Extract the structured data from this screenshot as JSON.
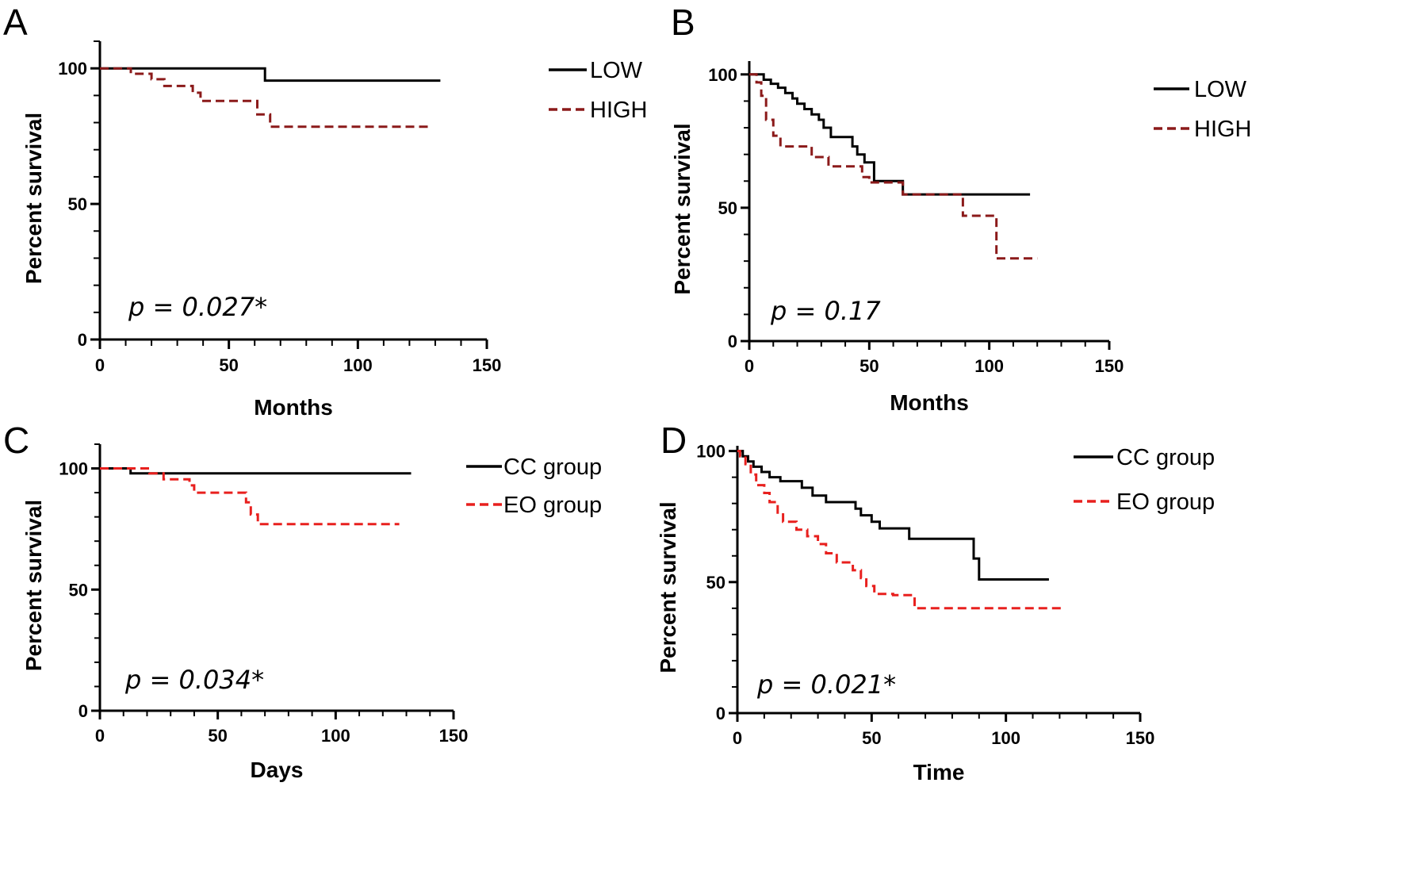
{
  "chart_data": [
    {
      "type": "line",
      "panel_label": "A",
      "xlabel": "Months",
      "ylabel": "Percent survival",
      "xlim": [
        0,
        150
      ],
      "ylim": [
        0,
        110
      ],
      "xticks": [
        "0",
        "50",
        "100",
        "150"
      ],
      "yticks": [
        "0",
        "50",
        "100"
      ],
      "annotation": "p = 0.027*",
      "legend_position": "right",
      "series": [
        {
          "name": "LOW",
          "color": "#000000",
          "style": "solid",
          "points": [
            [
              0,
              100
            ],
            [
              64,
              100
            ],
            [
              64,
              95.5
            ],
            [
              132,
              95.5
            ]
          ]
        },
        {
          "name": "HIGH",
          "color": "#8b1a1a",
          "style": "dashed",
          "points": [
            [
              0,
              100
            ],
            [
              12,
              100
            ],
            [
              12,
              98
            ],
            [
              20,
              98
            ],
            [
              20,
              96
            ],
            [
              25,
              96
            ],
            [
              25,
              93.5
            ],
            [
              36,
              93.5
            ],
            [
              36,
              91
            ],
            [
              39,
              91
            ],
            [
              39,
              88
            ],
            [
              61,
              88
            ],
            [
              61,
              83
            ],
            [
              66,
              83
            ],
            [
              66,
              78.5
            ],
            [
              128,
              78.5
            ]
          ]
        }
      ]
    },
    {
      "type": "line",
      "panel_label": "B",
      "xlabel": "Months",
      "ylabel": "Percent survival",
      "xlim": [
        0,
        150
      ],
      "ylim": [
        0,
        105
      ],
      "xticks": [
        "0",
        "50",
        "100",
        "150"
      ],
      "yticks": [
        "0",
        "50",
        "100"
      ],
      "annotation": "p = 0.17",
      "legend_position": "right",
      "series": [
        {
          "name": "LOW",
          "color": "#000000",
          "style": "solid",
          "points": [
            [
              0,
              100
            ],
            [
              6,
              100
            ],
            [
              6,
              98
            ],
            [
              9,
              98
            ],
            [
              9,
              96.5
            ],
            [
              12,
              96.5
            ],
            [
              12,
              95
            ],
            [
              15,
              95
            ],
            [
              15,
              93
            ],
            [
              18,
              93
            ],
            [
              18,
              91
            ],
            [
              20,
              91
            ],
            [
              20,
              89
            ],
            [
              23,
              89
            ],
            [
              23,
              87
            ],
            [
              26,
              87
            ],
            [
              26,
              85
            ],
            [
              29,
              85
            ],
            [
              29,
              83
            ],
            [
              31,
              83
            ],
            [
              31,
              80
            ],
            [
              34,
              80
            ],
            [
              34,
              76.5
            ],
            [
              43,
              76.5
            ],
            [
              43,
              73
            ],
            [
              45,
              73
            ],
            [
              45,
              70
            ],
            [
              48,
              70
            ],
            [
              48,
              67
            ],
            [
              52,
              67
            ],
            [
              52,
              60
            ],
            [
              64,
              60
            ],
            [
              64,
              55
            ],
            [
              117,
              55
            ]
          ]
        },
        {
          "name": "HIGH",
          "color": "#8b1a1a",
          "style": "dashed",
          "points": [
            [
              0,
              100
            ],
            [
              3,
              100
            ],
            [
              3,
              97
            ],
            [
              5,
              97
            ],
            [
              5,
              92
            ],
            [
              7,
              92
            ],
            [
              7,
              83
            ],
            [
              10,
              83
            ],
            [
              10,
              77
            ],
            [
              13,
              77
            ],
            [
              13,
              73
            ],
            [
              26,
              73
            ],
            [
              26,
              69
            ],
            [
              33,
              69
            ],
            [
              33,
              65.5
            ],
            [
              47,
              65.5
            ],
            [
              47,
              61.5
            ],
            [
              50,
              61.5
            ],
            [
              50,
              59.5
            ],
            [
              64,
              59.5
            ],
            [
              64,
              55
            ],
            [
              89,
              55
            ],
            [
              89,
              47
            ],
            [
              103,
              47
            ],
            [
              103,
              31
            ],
            [
              120,
              31
            ]
          ]
        }
      ]
    },
    {
      "type": "line",
      "panel_label": "C",
      "xlabel": "Days",
      "ylabel": "Percent survival",
      "xlim": [
        0,
        150
      ],
      "ylim": [
        0,
        110
      ],
      "xticks": [
        "0",
        "50",
        "100",
        "150"
      ],
      "yticks": [
        "0",
        "50",
        "100"
      ],
      "annotation": "p = 0.034*",
      "legend_position": "right",
      "series": [
        {
          "name": "CC group",
          "color": "#000000",
          "style": "solid",
          "points": [
            [
              0,
              100
            ],
            [
              13,
              100
            ],
            [
              13,
              98
            ],
            [
              132,
              98
            ]
          ]
        },
        {
          "name": "EO group",
          "color": "#e8201e",
          "style": "dashed",
          "points": [
            [
              0,
              100
            ],
            [
              21,
              100
            ],
            [
              21,
              98
            ],
            [
              27,
              98
            ],
            [
              27,
              95.5
            ],
            [
              38,
              95.5
            ],
            [
              38,
              93
            ],
            [
              40,
              93
            ],
            [
              40,
              90
            ],
            [
              62,
              90
            ],
            [
              62,
              86
            ],
            [
              64,
              86
            ],
            [
              64,
              81
            ],
            [
              67,
              81
            ],
            [
              67,
              77
            ],
            [
              127,
              77
            ]
          ]
        }
      ]
    },
    {
      "type": "line",
      "panel_label": "D",
      "xlabel": "Time",
      "ylabel": "Percent survival",
      "xlim": [
        0,
        150
      ],
      "ylim": [
        0,
        102
      ],
      "xticks": [
        "0",
        "50",
        "100",
        "150"
      ],
      "yticks": [
        "0",
        "50",
        "100"
      ],
      "annotation": "p = 0.021*",
      "legend_position": "right",
      "series": [
        {
          "name": "CC group",
          "color": "#000000",
          "style": "solid",
          "points": [
            [
              0,
              100
            ],
            [
              2,
              100
            ],
            [
              2,
              98
            ],
            [
              4,
              98
            ],
            [
              4,
              96
            ],
            [
              6,
              96
            ],
            [
              6,
              94
            ],
            [
              9,
              94
            ],
            [
              9,
              92
            ],
            [
              12,
              92
            ],
            [
              12,
              90
            ],
            [
              16,
              90
            ],
            [
              16,
              88.5
            ],
            [
              24,
              88.5
            ],
            [
              24,
              86
            ],
            [
              28,
              86
            ],
            [
              28,
              83
            ],
            [
              33,
              83
            ],
            [
              33,
              80.5
            ],
            [
              44,
              80.5
            ],
            [
              44,
              78
            ],
            [
              46,
              78
            ],
            [
              46,
              75.5
            ],
            [
              50,
              75.5
            ],
            [
              50,
              73
            ],
            [
              53,
              73
            ],
            [
              53,
              70.5
            ],
            [
              64,
              70.5
            ],
            [
              64,
              66.5
            ],
            [
              88,
              66.5
            ],
            [
              88,
              59
            ],
            [
              90,
              59
            ],
            [
              90,
              51
            ],
            [
              116,
              51
            ]
          ]
        },
        {
          "name": "EO group",
          "color": "#e8201e",
          "style": "dashed",
          "points": [
            [
              0,
              100
            ],
            [
              1,
              100
            ],
            [
              1,
              98
            ],
            [
              3,
              98
            ],
            [
              3,
              95
            ],
            [
              5,
              95
            ],
            [
              5,
              91
            ],
            [
              7,
              91
            ],
            [
              7,
              87
            ],
            [
              10,
              87
            ],
            [
              10,
              84
            ],
            [
              12,
              84
            ],
            [
              12,
              80.5
            ],
            [
              15,
              80.5
            ],
            [
              15,
              76.5
            ],
            [
              17,
              76.5
            ],
            [
              17,
              73
            ],
            [
              22,
              73
            ],
            [
              22,
              70
            ],
            [
              26,
              70
            ],
            [
              26,
              67.5
            ],
            [
              30,
              67.5
            ],
            [
              30,
              64.5
            ],
            [
              33,
              64.5
            ],
            [
              33,
              61
            ],
            [
              37,
              61
            ],
            [
              37,
              57.5
            ],
            [
              43,
              57.5
            ],
            [
              43,
              54.5
            ],
            [
              46,
              54.5
            ],
            [
              46,
              51.5
            ],
            [
              48,
              51.5
            ],
            [
              48,
              48.5
            ],
            [
              51,
              48.5
            ],
            [
              51,
              45.5
            ],
            [
              58,
              45.5
            ],
            [
              58,
              45
            ],
            [
              66,
              45
            ],
            [
              66,
              40
            ],
            [
              122,
              40
            ]
          ]
        }
      ]
    }
  ]
}
